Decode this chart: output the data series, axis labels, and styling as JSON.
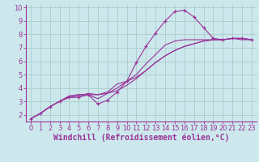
{
  "background_color": "#cce8ec",
  "grid_color": "#aacccc",
  "line_color": "#993399",
  "marker_color": "#993399",
  "xlabel": "Windchill (Refroidissement éolien,°C)",
  "xlim": [
    -0.5,
    23.5
  ],
  "ylim": [
    1.5,
    10.2
  ],
  "xticks": [
    0,
    1,
    2,
    3,
    4,
    5,
    6,
    7,
    8,
    9,
    10,
    11,
    12,
    13,
    14,
    15,
    16,
    17,
    18,
    19,
    20,
    21,
    22,
    23
  ],
  "yticks": [
    2,
    3,
    4,
    5,
    6,
    7,
    8,
    9,
    10
  ],
  "series": [
    {
      "x": [
        0,
        1,
        2,
        3,
        4,
        5,
        6,
        7,
        8,
        9,
        10,
        11,
        12,
        13,
        14,
        15,
        16,
        17,
        18,
        19,
        20,
        21,
        22,
        23
      ],
      "y": [
        1.7,
        2.1,
        2.6,
        3.0,
        3.3,
        3.3,
        3.5,
        2.8,
        3.1,
        3.7,
        4.5,
        5.9,
        7.1,
        8.1,
        9.0,
        9.7,
        9.8,
        9.3,
        8.5,
        7.7,
        7.6,
        7.7,
        7.7,
        7.6
      ],
      "has_markers": true
    },
    {
      "x": [
        0,
        1,
        2,
        3,
        4,
        5,
        6,
        7,
        8,
        9,
        10,
        11,
        12,
        13,
        14,
        15,
        16,
        17,
        18,
        19,
        20,
        21,
        22,
        23
      ],
      "y": [
        1.7,
        2.1,
        2.6,
        3.0,
        3.3,
        3.4,
        3.6,
        3.5,
        3.7,
        4.3,
        4.5,
        5.0,
        5.8,
        6.5,
        7.2,
        7.5,
        7.6,
        7.6,
        7.6,
        7.6,
        7.6,
        7.7,
        7.6,
        7.6
      ],
      "has_markers": false
    },
    {
      "x": [
        0,
        1,
        2,
        3,
        4,
        5,
        6,
        7,
        8,
        9,
        10,
        11,
        12,
        13,
        14,
        15,
        16,
        17,
        18,
        19,
        20,
        21,
        22,
        23
      ],
      "y": [
        1.7,
        2.1,
        2.6,
        3.0,
        3.4,
        3.5,
        3.5,
        3.5,
        3.6,
        3.8,
        4.2,
        4.7,
        5.3,
        5.9,
        6.4,
        6.8,
        7.1,
        7.3,
        7.5,
        7.6,
        7.6,
        7.7,
        7.7,
        7.6
      ],
      "has_markers": false
    },
    {
      "x": [
        0,
        1,
        2,
        3,
        4,
        5,
        6,
        7,
        8,
        9,
        10,
        11,
        12,
        13,
        14,
        15,
        16,
        17,
        18,
        19,
        20,
        21,
        22,
        23
      ],
      "y": [
        1.7,
        2.1,
        2.6,
        3.0,
        3.4,
        3.5,
        3.5,
        3.2,
        3.6,
        4.0,
        4.5,
        4.8,
        5.3,
        5.9,
        6.4,
        6.8,
        7.1,
        7.3,
        7.5,
        7.6,
        7.6,
        7.7,
        7.7,
        7.6
      ],
      "has_markers": false
    }
  ],
  "tick_fontsize": 6,
  "xlabel_fontsize": 7,
  "tick_color": "#993399",
  "axis_color": "#993399",
  "spine_color": "#993399"
}
